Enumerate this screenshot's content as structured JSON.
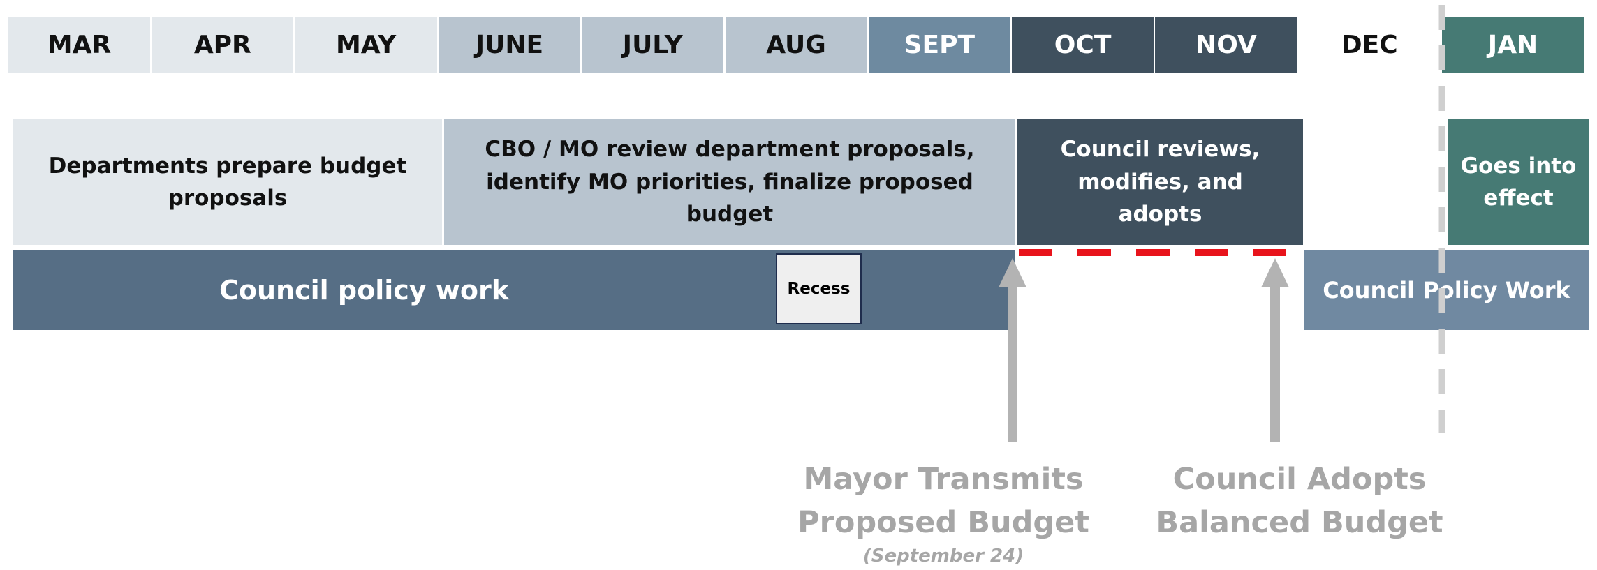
{
  "months": [
    "MAR",
    "APR",
    "MAY",
    "JUNE",
    "JULY",
    "AUG",
    "SEPT",
    "OCT",
    "NOV",
    "DEC",
    "JAN"
  ],
  "phases": [
    "Departments prepare budget proposals",
    "CBO / MO review department proposals, identify MO priorities, finalize proposed budget",
    "Council reviews, modifies, and adopts",
    "Goes into effect"
  ],
  "policy": [
    "Council policy work",
    "Recess",
    "Council Policy Work"
  ],
  "milestones": [
    {
      "lines": [
        "Mayor Transmits",
        "Proposed Budget"
      ],
      "note": "(September 24)"
    },
    {
      "lines": [
        "Council Adopts",
        "Balanced Budget"
      ]
    }
  ]
}
